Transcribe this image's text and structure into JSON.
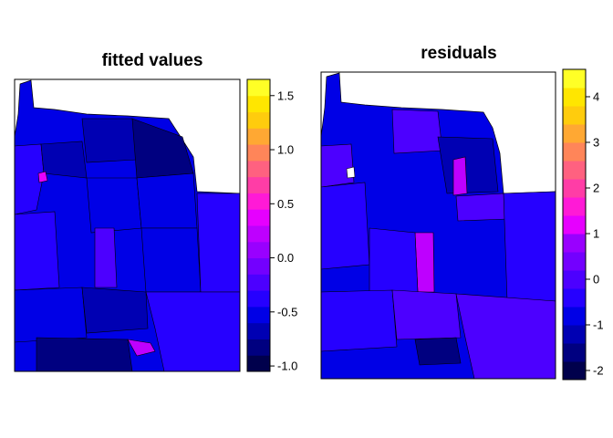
{
  "chart_data": [
    {
      "type": "choropleth-map",
      "title": "fitted values",
      "legend": {
        "placement": "right",
        "ticks": [
          -1.0,
          -0.5,
          0.0,
          0.5,
          1.0,
          1.5
        ],
        "tick_labels": [
          "-1.0",
          "-0.5",
          "0.0",
          "0.5",
          "1.0",
          "1.5"
        ],
        "range": [
          -1.05,
          1.65
        ],
        "bins": 18
      }
    },
    {
      "type": "choropleth-map",
      "title": "residuals",
      "legend": {
        "placement": "right",
        "ticks": [
          -2,
          -1,
          0,
          1,
          2,
          3,
          4
        ],
        "tick_labels": [
          "-2",
          "-1",
          "0",
          "1",
          "2",
          "3",
          "4"
        ],
        "range": [
          -2.2,
          4.6
        ],
        "bins": 17
      }
    }
  ],
  "palette": [
    "#00004c",
    "#000080",
    "#0000b3",
    "#0000e6",
    "#2600ff",
    "#4c00ff",
    "#7300ff",
    "#9900ff",
    "#be00ff",
    "#e600ff",
    "#ff1ad6",
    "#ff3da6",
    "#ff6180",
    "#ff8559",
    "#ffa833",
    "#ffcc0d",
    "#ffe600",
    "#ffff26"
  ]
}
